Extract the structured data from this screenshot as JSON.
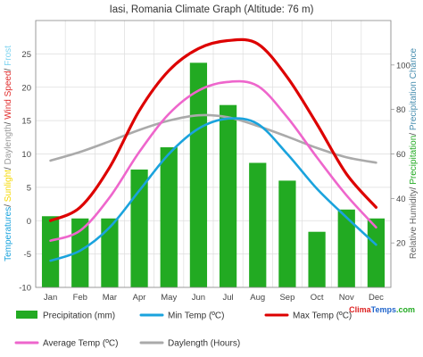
{
  "chart_data": {
    "type": "bar",
    "title": "Iasi, Romania Climate Graph (Altitude: 76 m)",
    "categories": [
      "Jan",
      "Feb",
      "Mar",
      "Apr",
      "May",
      "Jun",
      "Jul",
      "Aug",
      "Sep",
      "Oct",
      "Nov",
      "Dec"
    ],
    "left_axis": {
      "ylim": [
        -10,
        30
      ],
      "ticks": [
        "-10",
        "-5",
        "0",
        "5",
        "10",
        "15",
        "20",
        "25"
      ],
      "label_parts": [
        {
          "text": "Temperatures",
          "color": "#1aa3dd"
        },
        {
          "text": "/ ",
          "color": "#444444"
        },
        {
          "text": "Sunlight",
          "color": "#f5d800"
        },
        {
          "text": "/ ",
          "color": "#444444"
        },
        {
          "text": "Daylength",
          "color": "#9a9a9a"
        },
        {
          "text": "/ ",
          "color": "#444444"
        },
        {
          "text": "Wind Speed",
          "color": "#e03030"
        },
        {
          "text": "/ ",
          "color": "#444444"
        },
        {
          "text": "Frost",
          "color": "#7fd4f0"
        }
      ]
    },
    "right_axis": {
      "ylim": [
        0,
        120
      ],
      "ticks": [
        "20",
        "40",
        "60",
        "80",
        "100"
      ],
      "label_parts": [
        {
          "text": "Relative Humidity",
          "color": "#666666"
        },
        {
          "text": "/ ",
          "color": "#444444"
        },
        {
          "text": "Precipitation",
          "color": "#22aa22"
        },
        {
          "text": "/ ",
          "color": "#444444"
        },
        {
          "text": "Precipitation Chance",
          "color": "#4a8fb0"
        }
      ]
    },
    "series": [
      {
        "name": "Precipitation (mm)",
        "type": "bar",
        "axis": "right",
        "color": "#22aa22",
        "values": [
          32,
          31,
          31,
          53,
          63,
          101,
          82,
          56,
          48,
          25,
          35,
          31
        ]
      },
      {
        "name": "Min Temp (ºC)",
        "type": "line",
        "axis": "left",
        "color": "#1aa3dd",
        "values": [
          -6.0,
          -4.5,
          -1.0,
          4.5,
          10.0,
          13.8,
          15.3,
          14.5,
          10.0,
          4.8,
          0.5,
          -3.6
        ]
      },
      {
        "name": "Max Temp (ºC)",
        "type": "line",
        "axis": "left",
        "color": "#dd0000",
        "values": [
          0.0,
          2.0,
          8.0,
          16.5,
          22.5,
          25.8,
          27.0,
          26.5,
          21.5,
          14.5,
          7.0,
          2.0
        ]
      },
      {
        "name": "Average Temp (ºC)",
        "type": "line",
        "axis": "left",
        "color": "#ee66cc",
        "values": [
          -3.0,
          -1.5,
          3.5,
          10.3,
          16.0,
          19.5,
          20.8,
          20.2,
          15.5,
          9.5,
          3.8,
          -1.0
        ]
      },
      {
        "name": "Daylength (Hours)",
        "type": "line",
        "axis": "left",
        "color": "#aaaaaa",
        "values": [
          9.0,
          10.3,
          11.9,
          13.6,
          15.0,
          15.8,
          15.5,
          14.2,
          12.6,
          10.9,
          9.5,
          8.7
        ]
      }
    ],
    "grid": true,
    "legend_position": "bottom"
  },
  "branding": {
    "clima": "Clima",
    "temps": "Temps",
    "domain": ".com"
  }
}
